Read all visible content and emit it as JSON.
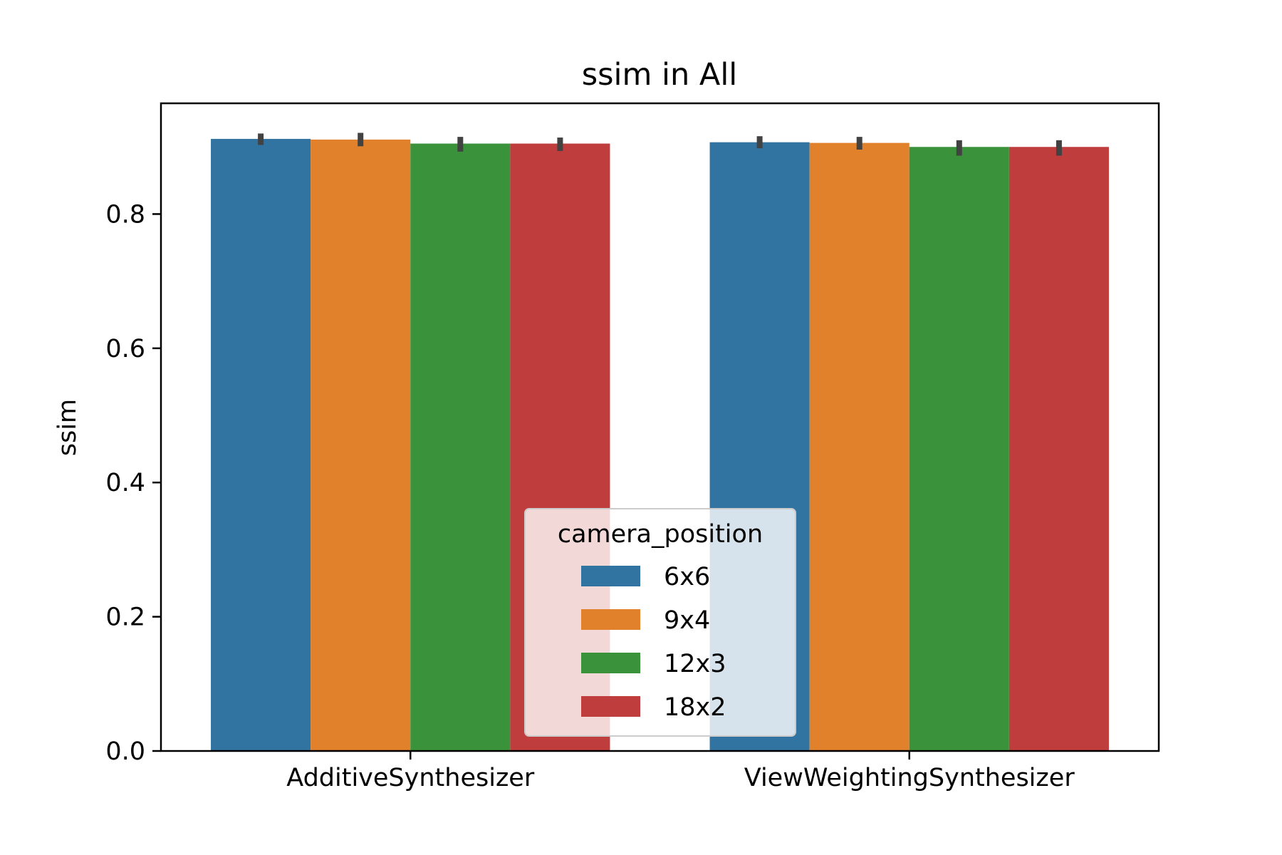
{
  "chart_data": {
    "type": "bar",
    "title": "ssim in All",
    "xlabel": "",
    "ylabel": "ssim",
    "categories": [
      "AdditiveSynthesizer",
      "ViewWeightingSynthesizer"
    ],
    "ylim": [
      0,
      0.965
    ],
    "yticks": [
      0.0,
      0.2,
      0.4,
      0.6,
      0.8
    ],
    "ytick_labels": [
      "0.0",
      "0.2",
      "0.4",
      "0.6",
      "0.8"
    ],
    "grid": false,
    "legend": {
      "title": "camera_position",
      "placement": "lower-center"
    },
    "series": [
      {
        "name": "6x6",
        "color": "#3274a1",
        "values": [
          0.912,
          0.907
        ],
        "err": [
          [
            0.903,
            0.92
          ],
          [
            0.898,
            0.916
          ]
        ]
      },
      {
        "name": "9x4",
        "color": "#e1812c",
        "values": [
          0.911,
          0.906
        ],
        "err": [
          [
            0.901,
            0.921
          ],
          [
            0.896,
            0.915
          ]
        ]
      },
      {
        "name": "12x3",
        "color": "#3a923a",
        "values": [
          0.905,
          0.9
        ],
        "err": [
          [
            0.893,
            0.915
          ],
          [
            0.887,
            0.91
          ]
        ]
      },
      {
        "name": "18x2",
        "color": "#c03d3e",
        "values": [
          0.905,
          0.9
        ],
        "err": [
          [
            0.894,
            0.914
          ],
          [
            0.887,
            0.91
          ]
        ]
      }
    ],
    "errorbar_color": "#424242"
  }
}
